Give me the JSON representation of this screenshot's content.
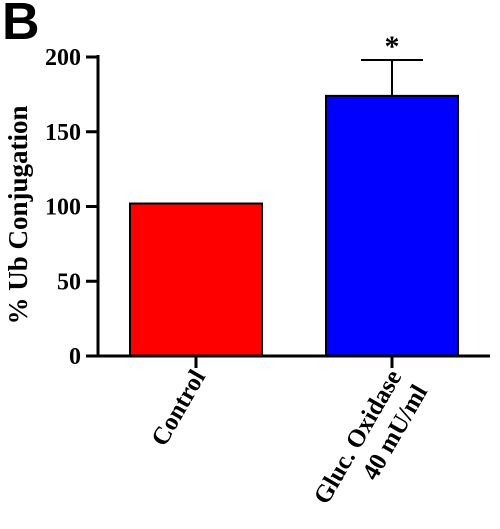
{
  "panel_label": "B",
  "chart_data": {
    "type": "bar",
    "title": "",
    "xlabel": "",
    "ylabel": "% Ub Conjugation",
    "ylim": [
      0,
      200
    ],
    "yticks": [
      0,
      50,
      100,
      150,
      200
    ],
    "categories": [
      [
        "Control"
      ],
      [
        "Gluc. Oxidase",
        "40 mU/ml"
      ]
    ],
    "values": [
      102,
      174
    ],
    "error_upper": [
      0,
      24
    ],
    "colors": [
      "#ff0000",
      "#0000ff"
    ],
    "annotations": [
      "",
      "*"
    ],
    "grid": false,
    "legend": "none"
  }
}
